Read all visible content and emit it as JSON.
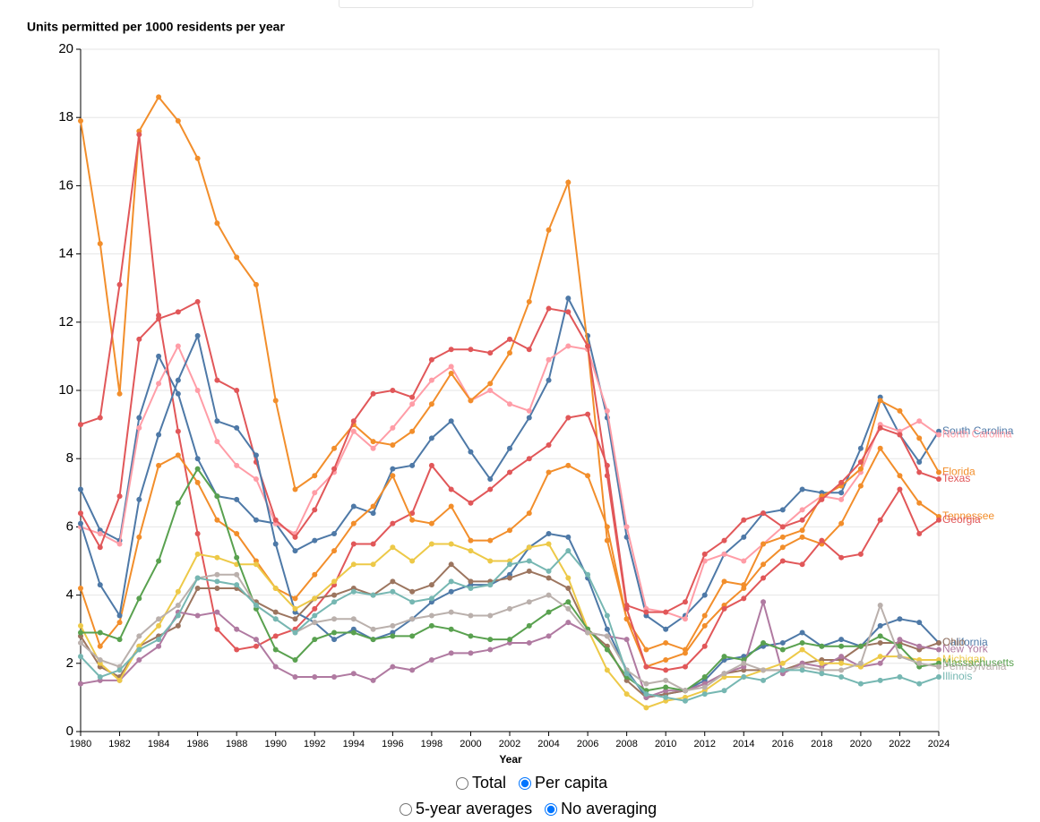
{
  "chart_data": {
    "type": "line",
    "ylabel": "Units permitted per 1000 residents per year",
    "xlabel": "Year",
    "x": [
      1980,
      1981,
      1982,
      1983,
      1984,
      1985,
      1986,
      1987,
      1988,
      1989,
      1990,
      1991,
      1992,
      1993,
      1994,
      1995,
      1996,
      1997,
      1998,
      1999,
      2000,
      2001,
      2002,
      2003,
      2004,
      2005,
      2006,
      2007,
      2008,
      2009,
      2010,
      2011,
      2012,
      2013,
      2014,
      2015,
      2016,
      2017,
      2018,
      2019,
      2020,
      2021,
      2022,
      2023,
      2024
    ],
    "xlim": [
      1980,
      2024
    ],
    "xticks": [
      1980,
      1982,
      1984,
      1986,
      1988,
      1990,
      1992,
      1994,
      1996,
      1998,
      2000,
      2002,
      2004,
      2006,
      2008,
      2010,
      2012,
      2014,
      2016,
      2018,
      2020,
      2022,
      2024
    ],
    "ylim": [
      0,
      20
    ],
    "yticks": [
      0,
      2,
      4,
      6,
      8,
      10,
      12,
      14,
      16,
      18,
      20
    ],
    "grid": true,
    "series": [
      {
        "name": "South Carolina",
        "color": "#4e79a7",
        "values": [
          7.1,
          5.9,
          5.6,
          9.2,
          11.0,
          9.9,
          8.0,
          6.9,
          6.8,
          6.2,
          6.1,
          5.3,
          5.6,
          5.8,
          6.6,
          6.4,
          7.7,
          7.8,
          8.6,
          9.1,
          8.2,
          7.4,
          8.3,
          9.2,
          10.3,
          12.7,
          11.6,
          9.2,
          5.7,
          3.4,
          3.0,
          3.4,
          4.0,
          5.2,
          5.7,
          6.4,
          6.5,
          7.1,
          7.0,
          7.0,
          8.3,
          9.8,
          8.7,
          7.9,
          8.8
        ]
      },
      {
        "name": "North Carolina",
        "color": "#ff9da7",
        "values": [
          6.0,
          5.8,
          5.5,
          8.9,
          10.2,
          11.3,
          10.0,
          8.5,
          7.8,
          7.4,
          6.1,
          5.8,
          7.0,
          7.6,
          8.8,
          8.3,
          8.9,
          9.6,
          10.3,
          10.7,
          9.7,
          10.0,
          9.6,
          9.4,
          10.9,
          11.3,
          11.2,
          9.4,
          6.0,
          3.6,
          3.5,
          3.3,
          5.0,
          5.2,
          5.0,
          5.5,
          6.0,
          6.5,
          6.9,
          6.8,
          7.6,
          9.0,
          8.8,
          9.1,
          8.7
        ]
      },
      {
        "name": "Florida",
        "color": "#f28e2b",
        "values": [
          17.9,
          14.3,
          9.9,
          17.6,
          18.6,
          17.9,
          16.8,
          14.9,
          13.9,
          13.1,
          9.7,
          7.1,
          7.5,
          8.3,
          9.0,
          8.5,
          8.4,
          8.8,
          9.6,
          10.5,
          9.7,
          10.2,
          11.1,
          12.6,
          14.7,
          16.1,
          11.3,
          5.6,
          3.3,
          2.4,
          2.6,
          2.4,
          3.4,
          4.4,
          4.3,
          5.5,
          5.7,
          5.9,
          6.9,
          7.2,
          7.7,
          9.7,
          9.4,
          8.6,
          7.6
        ]
      },
      {
        "name": "Texas",
        "color": "#e15759",
        "values": [
          9.0,
          9.2,
          13.1,
          17.5,
          12.2,
          8.8,
          5.8,
          3.0,
          2.4,
          2.5,
          2.8,
          3.0,
          3.6,
          4.3,
          5.5,
          5.5,
          6.1,
          6.4,
          7.8,
          7.1,
          6.7,
          7.1,
          7.6,
          8.0,
          8.4,
          9.2,
          9.3,
          7.8,
          3.7,
          3.5,
          3.5,
          3.8,
          5.2,
          5.6,
          6.2,
          6.4,
          6.0,
          6.2,
          6.8,
          7.3,
          7.9,
          8.9,
          8.7,
          7.6,
          7.4
        ]
      },
      {
        "name": "Tennessee",
        "color": "#f28e2b",
        "values": [
          4.2,
          2.5,
          3.2,
          5.7,
          7.8,
          8.1,
          7.3,
          6.2,
          5.8,
          5.0,
          4.2,
          3.9,
          4.6,
          5.3,
          6.1,
          6.6,
          7.5,
          6.2,
          6.1,
          6.6,
          5.6,
          5.6,
          5.9,
          6.4,
          7.6,
          7.8,
          7.5,
          6.0,
          3.3,
          1.9,
          2.1,
          2.3,
          3.1,
          3.7,
          4.2,
          4.9,
          5.4,
          5.7,
          5.5,
          6.1,
          7.2,
          8.3,
          7.5,
          6.7,
          6.3
        ]
      },
      {
        "name": "Georgia",
        "color": "#e15759",
        "values": [
          6.4,
          5.4,
          6.9,
          11.5,
          12.1,
          12.3,
          12.6,
          10.3,
          10.0,
          7.9,
          6.2,
          5.7,
          6.5,
          7.7,
          9.1,
          9.9,
          10.0,
          9.8,
          10.9,
          11.2,
          11.2,
          11.1,
          11.5,
          11.2,
          12.4,
          12.3,
          11.3,
          7.5,
          3.6,
          1.9,
          1.8,
          1.9,
          2.5,
          3.6,
          3.9,
          4.5,
          5.0,
          4.9,
          5.6,
          5.1,
          5.2,
          6.2,
          7.1,
          5.8,
          6.2
        ]
      },
      {
        "name": "California",
        "color": "#4e79a7",
        "values": [
          6.1,
          4.3,
          3.4,
          6.8,
          8.7,
          10.3,
          11.6,
          9.1,
          8.9,
          8.1,
          5.5,
          3.5,
          3.2,
          2.7,
          3.0,
          2.7,
          2.9,
          3.3,
          3.8,
          4.1,
          4.3,
          4.3,
          4.6,
          5.4,
          5.8,
          5.7,
          4.5,
          3.0,
          1.8,
          1.0,
          1.1,
          1.2,
          1.5,
          2.1,
          2.2,
          2.5,
          2.6,
          2.9,
          2.5,
          2.7,
          2.5,
          3.1,
          3.3,
          3.2,
          2.6
        ]
      },
      {
        "name": "Ohio",
        "color": "#9c755f",
        "values": [
          2.8,
          1.9,
          1.6,
          2.5,
          2.8,
          3.1,
          4.2,
          4.2,
          4.2,
          3.8,
          3.5,
          3.3,
          3.9,
          4.0,
          4.2,
          4.0,
          4.4,
          4.1,
          4.3,
          4.9,
          4.4,
          4.4,
          4.5,
          4.7,
          4.5,
          4.2,
          3.0,
          2.5,
          1.5,
          1.0,
          1.1,
          1.2,
          1.4,
          1.7,
          1.8,
          1.8,
          1.8,
          2.0,
          2.1,
          2.1,
          2.5,
          2.6,
          2.6,
          2.4,
          2.6
        ]
      },
      {
        "name": "New York",
        "color": "#b07aa1",
        "values": [
          1.4,
          1.5,
          1.5,
          2.1,
          2.5,
          3.5,
          3.4,
          3.5,
          3.0,
          2.7,
          1.9,
          1.6,
          1.6,
          1.6,
          1.7,
          1.5,
          1.9,
          1.8,
          2.1,
          2.3,
          2.3,
          2.4,
          2.6,
          2.6,
          2.8,
          3.2,
          2.9,
          2.8,
          2.7,
          1.0,
          1.2,
          1.2,
          1.4,
          1.7,
          1.9,
          3.8,
          1.7,
          2.0,
          1.9,
          2.2,
          1.9,
          2.0,
          2.7,
          2.5,
          2.4
        ]
      },
      {
        "name": "Michigan",
        "color": "#edc948",
        "values": [
          3.1,
          2.0,
          1.5,
          2.5,
          3.1,
          4.1,
          5.2,
          5.1,
          4.9,
          4.9,
          4.2,
          3.6,
          3.9,
          4.4,
          4.9,
          4.9,
          5.4,
          5.0,
          5.5,
          5.5,
          5.3,
          5.0,
          5.0,
          5.4,
          5.5,
          4.5,
          3.0,
          1.8,
          1.1,
          0.7,
          0.9,
          1.0,
          1.2,
          1.6,
          1.6,
          1.8,
          2.0,
          2.4,
          2.0,
          2.0,
          1.9,
          2.2,
          2.2,
          2.1,
          2.1
        ]
      },
      {
        "name": "Massachusetts",
        "color": "#59a14f",
        "values": [
          2.9,
          2.9,
          2.7,
          3.9,
          5.0,
          6.7,
          7.7,
          6.9,
          5.1,
          3.6,
          2.4,
          2.1,
          2.7,
          2.9,
          2.9,
          2.7,
          2.8,
          2.8,
          3.1,
          3.0,
          2.8,
          2.7,
          2.7,
          3.1,
          3.5,
          3.8,
          3.0,
          2.4,
          1.6,
          1.2,
          1.3,
          1.2,
          1.6,
          2.2,
          2.1,
          2.6,
          2.4,
          2.6,
          2.5,
          2.5,
          2.5,
          2.8,
          2.5,
          1.9,
          2.0
        ]
      },
      {
        "name": "Pennsylvania",
        "color": "#bab0ac",
        "values": [
          2.6,
          2.1,
          1.9,
          2.8,
          3.3,
          3.7,
          4.5,
          4.6,
          4.6,
          3.7,
          3.3,
          2.9,
          3.2,
          3.3,
          3.3,
          3.0,
          3.1,
          3.3,
          3.4,
          3.5,
          3.4,
          3.4,
          3.6,
          3.8,
          4.0,
          3.6,
          2.9,
          2.8,
          1.8,
          1.4,
          1.5,
          1.2,
          1.3,
          1.7,
          2.0,
          1.8,
          1.8,
          1.9,
          1.8,
          1.8,
          2.0,
          3.7,
          2.2,
          2.0,
          1.9
        ]
      },
      {
        "name": "Illinois",
        "color": "#76b7b2",
        "values": [
          2.2,
          1.6,
          1.8,
          2.4,
          2.7,
          3.4,
          4.5,
          4.4,
          4.3,
          3.7,
          3.3,
          2.9,
          3.4,
          3.8,
          4.1,
          4.0,
          4.1,
          3.8,
          3.9,
          4.4,
          4.2,
          4.3,
          4.9,
          5.0,
          4.7,
          5.3,
          4.6,
          3.4,
          1.7,
          1.1,
          1.0,
          0.9,
          1.1,
          1.2,
          1.6,
          1.5,
          1.8,
          1.8,
          1.7,
          1.6,
          1.4,
          1.5,
          1.6,
          1.4,
          1.6
        ]
      }
    ]
  },
  "controls": {
    "measure": {
      "options": [
        "Total",
        "Per capita"
      ],
      "selected": 1
    },
    "averaging": {
      "options": [
        "5-year averages",
        "No averaging"
      ],
      "selected": 1
    }
  }
}
